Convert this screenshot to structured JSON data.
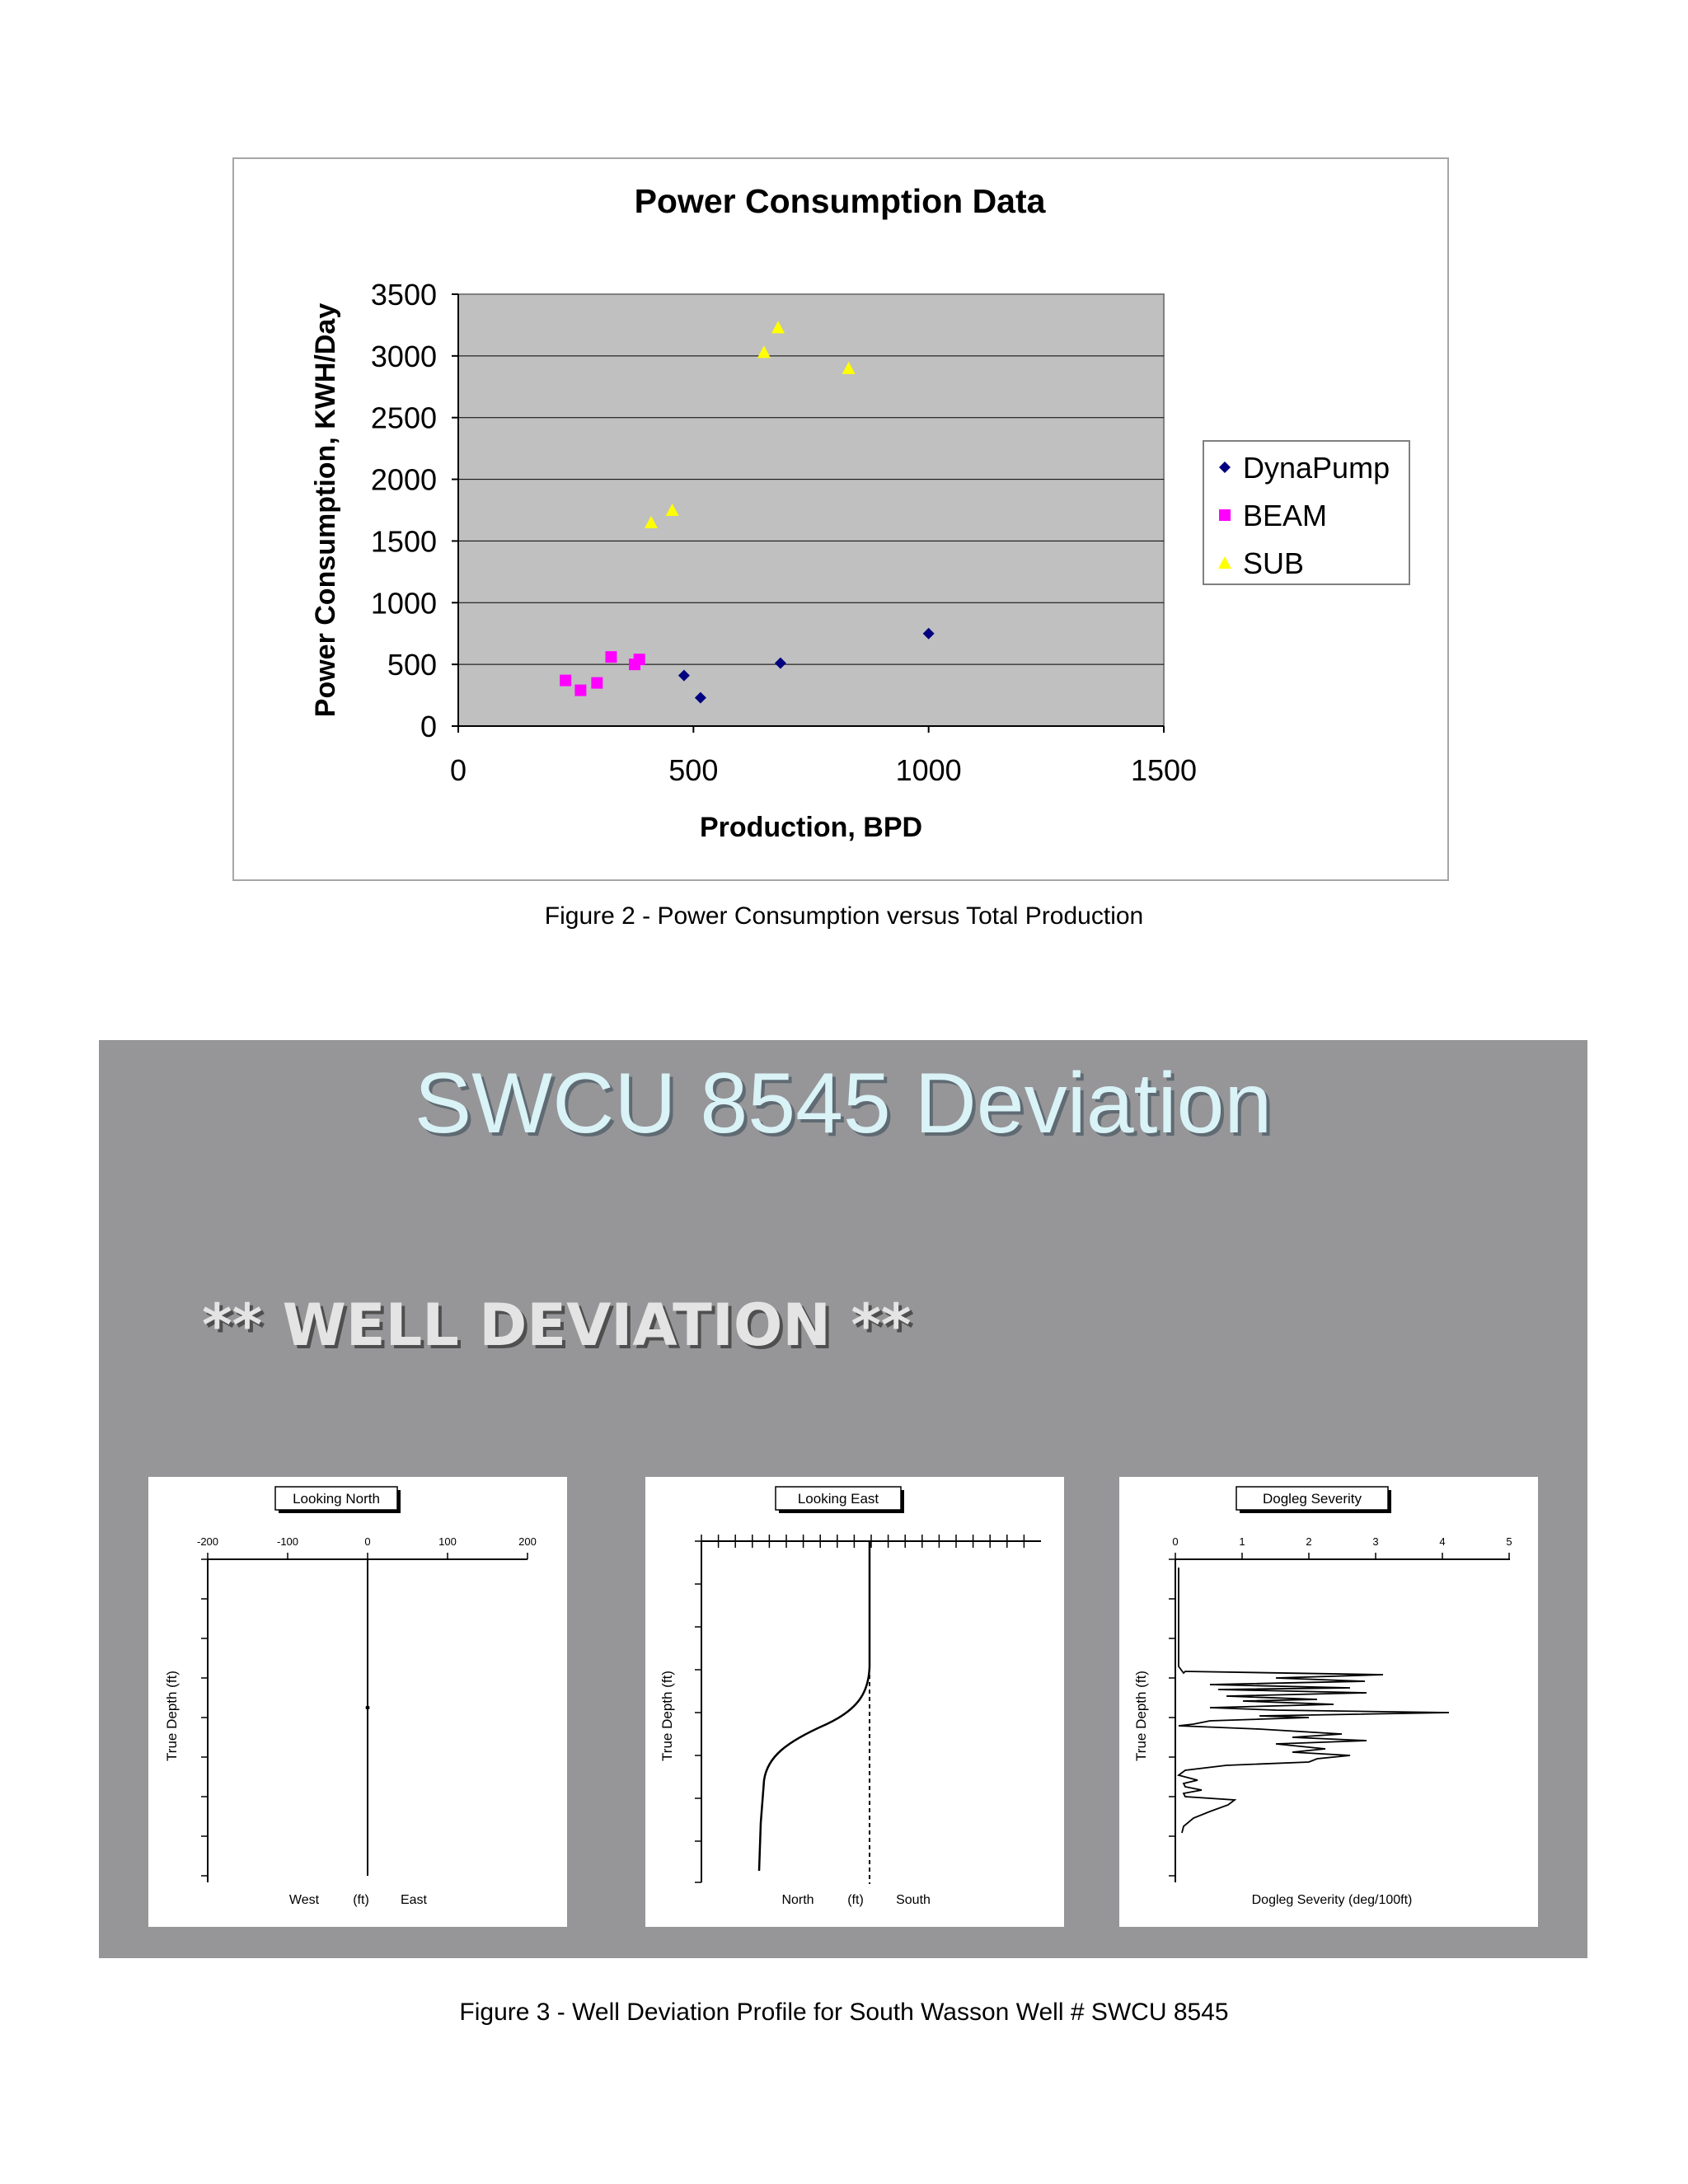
{
  "figure2": {
    "caption": "Figure 2 - Power Consumption versus Total Production"
  },
  "chart_data": [
    {
      "type": "scatter",
      "title": "Power Consumption Data",
      "xlabel": "Production, BPD",
      "ylabel": "Power Consumption, KWH/Day",
      "xlim": [
        0,
        1500
      ],
      "ylim": [
        0,
        3500
      ],
      "xticks": [
        0,
        500,
        1000,
        1500
      ],
      "yticks": [
        0,
        500,
        1000,
        1500,
        2000,
        2500,
        3000,
        3500
      ],
      "grid": true,
      "legend_position": "right",
      "series": [
        {
          "name": "DynaPump",
          "marker": "diamond",
          "color": "#000080",
          "points": [
            [
              480,
              410
            ],
            [
              515,
              230
            ],
            [
              685,
              510
            ],
            [
              1000,
              750
            ]
          ]
        },
        {
          "name": "BEAM",
          "marker": "square",
          "color": "#ff00ff",
          "points": [
            [
              228,
              370
            ],
            [
              260,
              290
            ],
            [
              295,
              350
            ],
            [
              325,
              560
            ],
            [
              375,
              500
            ],
            [
              385,
              540
            ]
          ]
        },
        {
          "name": "SUB",
          "marker": "triangle",
          "color": "#ffff00",
          "points": [
            [
              410,
              1650
            ],
            [
              455,
              1750
            ],
            [
              650,
              3030
            ],
            [
              680,
              3230
            ],
            [
              830,
              2900
            ]
          ]
        }
      ]
    }
  ],
  "slide": {
    "title": "SWCU 8545 Deviation",
    "subtitle": "** WELL DEVIATION **",
    "panels": [
      {
        "title": "Looking North",
        "ylabel": "True Depth (ft)",
        "xticks": [
          "-200",
          "-100",
          "0",
          "100",
          "200"
        ],
        "bottom_left": "West",
        "bottom_mid": "(ft)",
        "bottom_right": "East"
      },
      {
        "title": "Looking East",
        "ylabel": "True Depth (ft)",
        "bottom_left": "North",
        "bottom_mid": "(ft)",
        "bottom_right": "South"
      },
      {
        "title": "Dogleg Severity",
        "ylabel": "True Depth (ft)",
        "xticks": [
          "0",
          "1",
          "2",
          "3",
          "4",
          "5"
        ],
        "bottom_label": "Dogleg Severity (deg/100ft)"
      }
    ]
  },
  "figure3": {
    "caption": "Figure 3 -  Well Deviation Profile for South Wasson Well # SWCU 8545"
  }
}
